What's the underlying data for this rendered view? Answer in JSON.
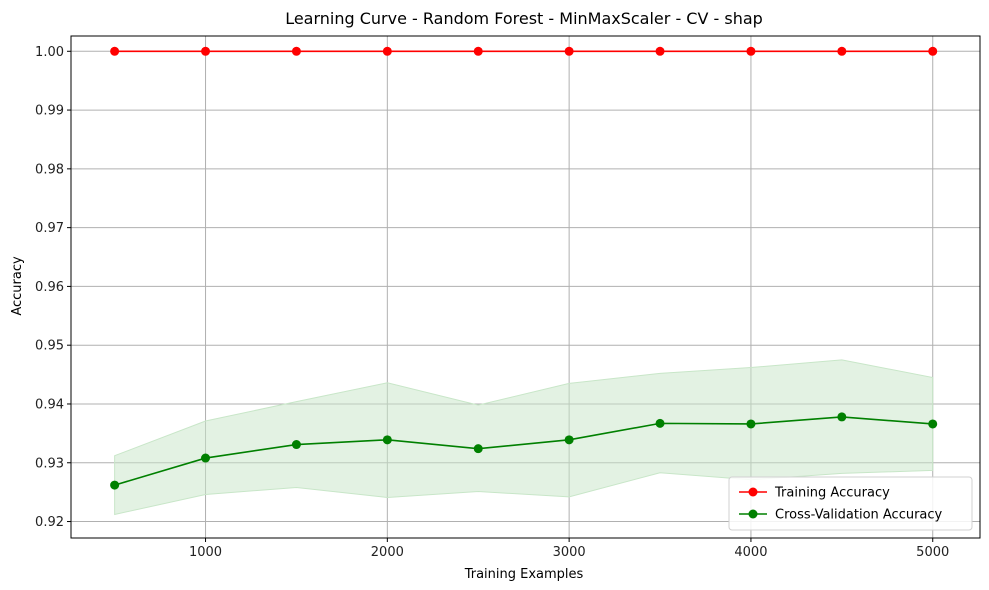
{
  "chart_data": {
    "type": "line",
    "title": "Learning Curve - Random Forest - MinMaxScaler - CV - shap",
    "xlabel": "Training Examples",
    "ylabel": "Accuracy",
    "xlim": [
      260,
      5260
    ],
    "ylim": [
      0.9172,
      1.0026
    ],
    "xticks": [
      1000,
      2000,
      3000,
      4000,
      5000
    ],
    "yticks": [
      0.92,
      0.93,
      0.94,
      0.95,
      0.96,
      0.97,
      0.98,
      0.99,
      1.0
    ],
    "ytick_labels": [
      "0.92",
      "0.93",
      "0.94",
      "0.95",
      "0.96",
      "0.97",
      "0.98",
      "0.99",
      "1.00"
    ],
    "grid": true,
    "legend_position": "lower-right",
    "x": [
      500,
      1000,
      1500,
      2000,
      2500,
      3000,
      3500,
      4000,
      4500,
      5000
    ],
    "series": [
      {
        "name": "Training Accuracy",
        "color": "#ff0000",
        "values": [
          1.0,
          1.0,
          1.0,
          1.0,
          1.0,
          1.0,
          1.0,
          1.0,
          1.0,
          1.0
        ],
        "band_lower": null,
        "band_upper": null
      },
      {
        "name": "Cross-Validation Accuracy",
        "color": "#008000",
        "band_color": "#c8e6c8",
        "values": [
          0.9262,
          0.9308,
          0.9331,
          0.9339,
          0.9324,
          0.9339,
          0.9367,
          0.9366,
          0.9378,
          0.9366
        ],
        "band_lower": [
          0.9212,
          0.9246,
          0.9258,
          0.9241,
          0.9251,
          0.9242,
          0.9283,
          0.9271,
          0.9282,
          0.9287
        ],
        "band_upper": [
          0.9312,
          0.9371,
          0.9404,
          0.9436,
          0.9398,
          0.9435,
          0.9452,
          0.9462,
          0.9475,
          0.9445
        ]
      }
    ]
  }
}
